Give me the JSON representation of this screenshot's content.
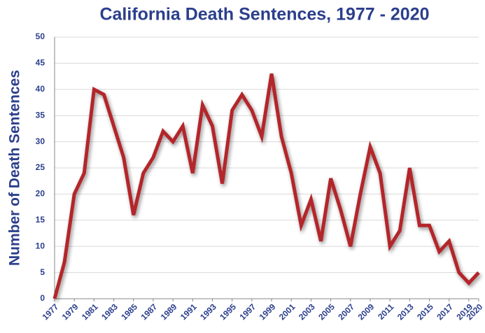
{
  "chart_data": {
    "type": "line",
    "title": "California Death Sentences, 1977 - 2020",
    "ylabel": "Number of Death Sentences",
    "x": [
      1977,
      1978,
      1979,
      1980,
      1981,
      1982,
      1983,
      1984,
      1985,
      1986,
      1987,
      1988,
      1989,
      1990,
      1991,
      1992,
      1993,
      1994,
      1995,
      1996,
      1997,
      1998,
      1999,
      2000,
      2001,
      2002,
      2003,
      2004,
      2005,
      2006,
      2007,
      2008,
      2009,
      2010,
      2011,
      2012,
      2013,
      2014,
      2015,
      2016,
      2017,
      2018,
      2019,
      2020
    ],
    "series": [
      {
        "name": "Death Sentences",
        "color": "#b3262c",
        "values": [
          0,
          7,
          20,
          24,
          40,
          39,
          33,
          27,
          16,
          24,
          27,
          32,
          30,
          33,
          24,
          37,
          33,
          22,
          36,
          39,
          36,
          31,
          43,
          31,
          24,
          14,
          19,
          11,
          23,
          17,
          10,
          20,
          29,
          24,
          10,
          13,
          25,
          14,
          14,
          9,
          11,
          5,
          3,
          5
        ]
      }
    ],
    "xlim": [
      1977,
      2020
    ],
    "xticks": [
      1977,
      1979,
      1981,
      1983,
      1985,
      1987,
      1989,
      1991,
      1993,
      1995,
      1997,
      1999,
      2001,
      2003,
      2005,
      2007,
      2009,
      2011,
      2013,
      2015,
      2017,
      2019,
      2020
    ],
    "ylim": [
      0,
      50
    ],
    "yticks": [
      0,
      5,
      10,
      15,
      20,
      25,
      30,
      35,
      40,
      45,
      50
    ],
    "grid": true
  }
}
